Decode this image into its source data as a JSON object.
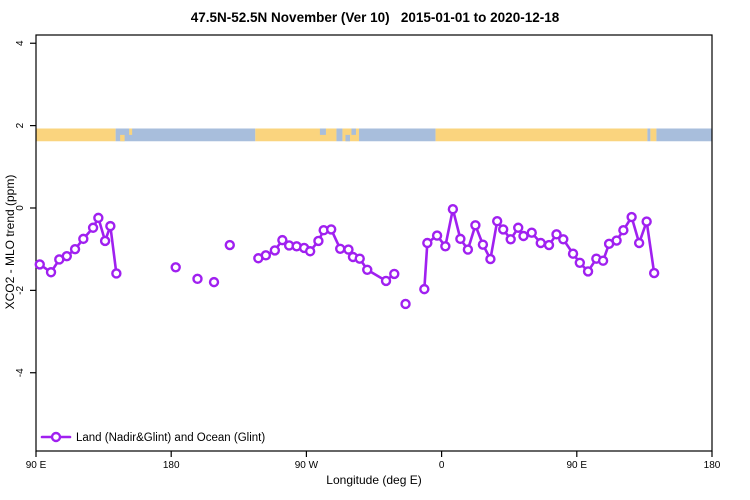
{
  "chart_data": {
    "type": "line",
    "title": "47.5N-52.5N November (Ver 10)   2015-01-01 to 2020-12-18",
    "xlabel": "Longitude (deg E)",
    "ylabel": "XCO2 - MLO trend (ppm)",
    "xlim": [
      90,
      540
    ],
    "ylim": [
      -5.9,
      4.2
    ],
    "grid": false,
    "xticks": [
      {
        "pos": 90,
        "label": "90 E"
      },
      {
        "pos": 180,
        "label": "180"
      },
      {
        "pos": 270,
        "label": "90 W"
      },
      {
        "pos": 360,
        "label": "0"
      },
      {
        "pos": 450,
        "label": "90 E"
      },
      {
        "pos": 540,
        "label": "180"
      }
    ],
    "yticks": [
      {
        "pos": -4,
        "label": "-4"
      },
      {
        "pos": -2,
        "label": "-2"
      },
      {
        "pos": 0,
        "label": "0"
      },
      {
        "pos": 2,
        "label": "2"
      },
      {
        "pos": 4,
        "label": "4"
      }
    ],
    "colors": {
      "series": "#A020F0",
      "land": "#FAD47E",
      "ocean": "#A8BEDC",
      "frame": "#000000",
      "background": "#FFFFFF"
    },
    "map_strip": {
      "value_top": 1.93,
      "value_bottom": 1.62,
      "segments": [
        {
          "from": 90,
          "to": 143,
          "type": "land"
        },
        {
          "from": 143,
          "to": 236,
          "type": "ocean"
        },
        {
          "from": 236,
          "to": 290,
          "type": "land"
        },
        {
          "from": 290,
          "to": 294,
          "type": "ocean"
        },
        {
          "from": 294,
          "to": 305,
          "type": "land"
        },
        {
          "from": 305,
          "to": 356,
          "type": "ocean"
        },
        {
          "from": 356,
          "to": 497,
          "type": "land"
        },
        {
          "from": 497,
          "to": 499,
          "type": "ocean"
        },
        {
          "from": 499,
          "to": 503,
          "type": "land"
        },
        {
          "from": 503,
          "to": 540,
          "type": "ocean"
        }
      ],
      "patches": [
        {
          "from": 146,
          "to": 149,
          "type": "land",
          "pos": "bottom"
        },
        {
          "from": 152,
          "to": 154,
          "type": "land",
          "pos": "top"
        },
        {
          "from": 279,
          "to": 283,
          "type": "ocean",
          "pos": "top"
        },
        {
          "from": 296,
          "to": 299,
          "type": "ocean",
          "pos": "bottom"
        },
        {
          "from": 300,
          "to": 303,
          "type": "ocean",
          "pos": "top"
        }
      ]
    },
    "legend": {
      "label": "Land (Nadir&Glint) and Ocean (Glint)",
      "position": "bottom-left",
      "marker": "open-circle-on-line"
    },
    "series": [
      {
        "name": "Land (Nadir&Glint) and Ocean (Glint)",
        "color": "#A020F0",
        "marker": "open-circle",
        "segments": [
          [
            [
              92.5,
              -1.37
            ],
            [
              100,
              -1.56
            ],
            [
              105.5,
              -1.25
            ],
            [
              110.5,
              -1.17
            ],
            [
              116,
              -1.0
            ],
            [
              121.5,
              -0.75
            ],
            [
              128,
              -0.48
            ],
            [
              131.5,
              -0.24
            ],
            [
              136,
              -0.8
            ],
            [
              139.5,
              -0.44
            ],
            [
              143.5,
              -1.59
            ]
          ],
          [
            [
              238,
              -1.22
            ],
            [
              243,
              -1.15
            ],
            [
              249,
              -1.03
            ],
            [
              254,
              -0.78
            ],
            [
              258.5,
              -0.91
            ],
            [
              263.5,
              -0.93
            ],
            [
              268.5,
              -0.97
            ],
            [
              272.5,
              -1.05
            ],
            [
              278,
              -0.8
            ],
            [
              281.5,
              -0.54
            ],
            [
              286.5,
              -0.52
            ],
            [
              292.5,
              -0.99
            ],
            [
              298,
              -1.01
            ],
            [
              301,
              -1.19
            ],
            [
              305.5,
              -1.23
            ],
            [
              310.5,
              -1.5
            ],
            [
              323,
              -1.77
            ],
            [
              328.5,
              -1.6
            ]
          ],
          [
            [
              348.5,
              -1.97
            ],
            [
              350.5,
              -0.85
            ],
            [
              357,
              -0.67
            ],
            [
              362.5,
              -0.93
            ],
            [
              367.5,
              -0.03
            ],
            [
              372.5,
              -0.75
            ],
            [
              377.5,
              -1.01
            ],
            [
              382.5,
              -0.42
            ],
            [
              387.5,
              -0.89
            ],
            [
              392.5,
              -1.24
            ],
            [
              397,
              -0.32
            ],
            [
              401,
              -0.52
            ],
            [
              406,
              -0.76
            ],
            [
              411,
              -0.48
            ],
            [
              414.5,
              -0.68
            ],
            [
              420,
              -0.6
            ],
            [
              426,
              -0.85
            ],
            [
              431.5,
              -0.9
            ],
            [
              436.5,
              -0.64
            ],
            [
              441,
              -0.76
            ],
            [
              447.5,
              -1.11
            ],
            [
              452,
              -1.33
            ],
            [
              457.5,
              -1.54
            ],
            [
              463,
              -1.23
            ],
            [
              467.5,
              -1.28
            ],
            [
              471.5,
              -0.87
            ],
            [
              476.5,
              -0.79
            ],
            [
              481,
              -0.54
            ],
            [
              486.5,
              -0.22
            ],
            [
              491.5,
              -0.85
            ],
            [
              496.5,
              -0.33
            ],
            [
              501.5,
              -1.58
            ]
          ]
        ],
        "isolated_points": [
          [
            183,
            -1.44
          ],
          [
            197.5,
            -1.72
          ],
          [
            208.5,
            -1.8
          ],
          [
            219,
            -0.9
          ],
          [
            336,
            -2.33
          ]
        ]
      }
    ]
  }
}
